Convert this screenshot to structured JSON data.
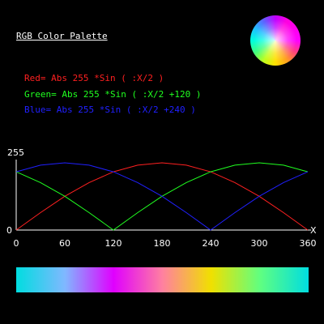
{
  "window": {
    "title": "RGB Color Palette"
  },
  "formulas": {
    "red": "Red= Abs 255 *Sin ( :X/2 )",
    "green": "Green= Abs 255 *Sin ( :X/2 +120 )",
    "blue": "Blue= Abs 255 *Sin ( :X/2 +240 )"
  },
  "colors": {
    "background": "#000000",
    "text": "#ffffff",
    "red": "#ff2020",
    "green": "#20ff20",
    "blue": "#2020ff"
  },
  "chart_data": {
    "type": "line",
    "title": "",
    "xlabel": "X",
    "ylabel": "",
    "xlim": [
      0,
      360
    ],
    "ylim": [
      0,
      255
    ],
    "x_ticks": [
      "0",
      "60",
      "120",
      "180",
      "240",
      "300",
      "360"
    ],
    "y_ticks": [
      "0",
      "255"
    ],
    "grid": false,
    "series": [
      {
        "name": "Red",
        "color": "#ff2020",
        "x": [
          0,
          30,
          60,
          90,
          120,
          150,
          180,
          210,
          240,
          270,
          300,
          330,
          360
        ],
        "values": [
          0,
          66,
          128,
          180,
          221,
          246,
          255,
          246,
          221,
          180,
          128,
          66,
          0
        ]
      },
      {
        "name": "Green",
        "color": "#20ff20",
        "x": [
          0,
          30,
          60,
          90,
          120,
          150,
          180,
          210,
          240,
          270,
          300,
          330,
          360
        ],
        "values": [
          221,
          180,
          128,
          66,
          0,
          66,
          128,
          180,
          221,
          246,
          255,
          246,
          221
        ]
      },
      {
        "name": "Blue",
        "color": "#2020ff",
        "x": [
          0,
          30,
          60,
          90,
          120,
          150,
          180,
          210,
          240,
          270,
          300,
          330,
          360
        ],
        "values": [
          221,
          246,
          255,
          246,
          221,
          180,
          128,
          66,
          0,
          66,
          128,
          180,
          221
        ]
      }
    ]
  },
  "palette": {
    "stops": [
      "#00dde0",
      "#80b8ff",
      "#e000ff",
      "#ff80a0",
      "#f0e000",
      "#60ff80",
      "#00dde0"
    ]
  }
}
